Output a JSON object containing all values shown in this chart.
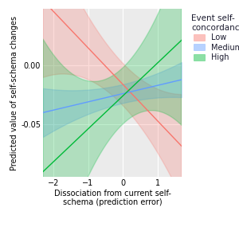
{
  "xlabel": "Dissociation from current self-\nschema (prediction error)",
  "ylabel": "Predicted value of self-schema changes",
  "legend_title": "Event self-\nconcordance",
  "legend_labels": [
    "Low",
    "Medium",
    "High"
  ],
  "x_range": [
    -2.3,
    1.7
  ],
  "y_range": [
    -0.095,
    0.048
  ],
  "x_ticks": [
    -2,
    -1,
    0,
    1
  ],
  "y_ticks": [
    0.0,
    -0.05
  ],
  "bg_color": "#EBEBEB",
  "grid_color": "#FFFFFF",
  "colors": [
    "#F8766D",
    "#619CFF",
    "#00BA38"
  ],
  "line_params": [
    {
      "slope": -0.031,
      "intercept": -0.016,
      "ci_base": 0.018,
      "ci_flare": 0.5
    },
    {
      "slope": 0.007,
      "intercept": -0.024,
      "ci_base": 0.008,
      "ci_flare": 0.3
    },
    {
      "slope": 0.028,
      "intercept": -0.026,
      "ci_base": 0.024,
      "ci_flare": 0.7
    }
  ]
}
